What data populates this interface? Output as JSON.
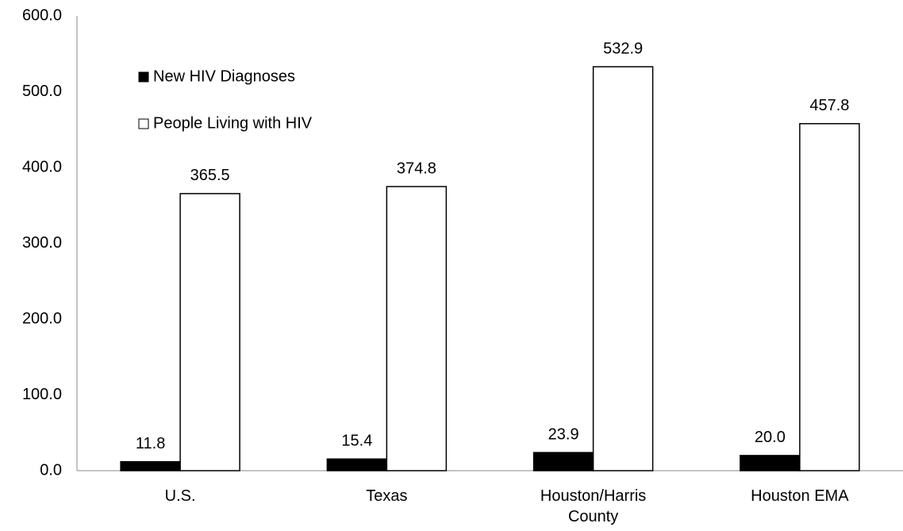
{
  "chart_data": {
    "type": "bar",
    "categories": [
      "U.S.",
      "Texas",
      "Houston/Harris County",
      "Houston EMA"
    ],
    "series": [
      {
        "name": "New HIV Diagnoses",
        "color": "#000000",
        "values": [
          11.8,
          15.4,
          23.9,
          20.0
        ],
        "value_labels": [
          "11.8",
          "15.4",
          "23.9",
          "20.0"
        ]
      },
      {
        "name": "People Living with HIV",
        "color": "#ffffff",
        "values": [
          365.5,
          374.8,
          532.9,
          457.8
        ],
        "value_labels": [
          "365.5",
          "374.8",
          "532.9",
          "457.8"
        ]
      }
    ],
    "ylim": [
      0,
      600
    ],
    "yticks": [
      {
        "value": 0,
        "label": "0.0"
      },
      {
        "value": 100,
        "label": "100.0"
      },
      {
        "value": 200,
        "label": "200.0"
      },
      {
        "value": 300,
        "label": "300.0"
      },
      {
        "value": 400,
        "label": "400.0"
      },
      {
        "value": 500,
        "label": "500.0"
      },
      {
        "value": 600,
        "label": "600.0"
      }
    ],
    "grid": false,
    "legend": "upper left"
  }
}
